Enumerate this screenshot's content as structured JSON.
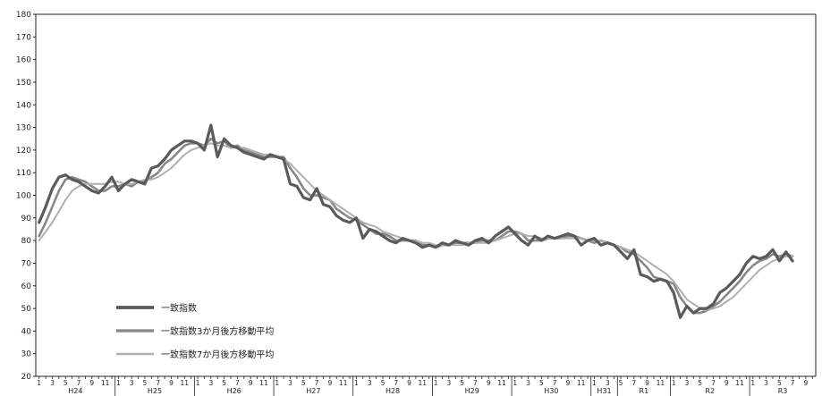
{
  "chart_data": {
    "type": "line",
    "ylim": [
      20,
      180
    ],
    "yticks": [
      20,
      30,
      40,
      50,
      60,
      70,
      80,
      90,
      100,
      110,
      120,
      130,
      140,
      150,
      160,
      170,
      180
    ],
    "grid": false,
    "legend_position": "bottom-left",
    "month_tick_labels": [
      "1",
      "3",
      "5",
      "7",
      "9",
      "11"
    ],
    "eras": [
      {
        "label": "H24",
        "months": 12
      },
      {
        "label": "H25",
        "months": 12
      },
      {
        "label": "H26",
        "months": 12
      },
      {
        "label": "H27",
        "months": 12
      },
      {
        "label": "H28",
        "months": 12
      },
      {
        "label": "H29",
        "months": 12
      },
      {
        "label": "H30",
        "months": 12
      },
      {
        "label": "H31",
        "months": 4
      },
      {
        "label": "R1",
        "months": 8
      },
      {
        "label": "R2",
        "months": 12
      },
      {
        "label": "R3",
        "months": 10
      }
    ],
    "series": [
      {
        "name": "一致指数",
        "color": "#5a5a5a",
        "values": [
          88,
          95,
          103,
          108,
          109,
          107,
          106,
          104,
          102,
          101,
          104,
          108,
          102,
          105,
          107,
          106,
          105,
          112,
          113,
          116,
          120,
          122,
          124,
          124,
          123,
          120,
          131,
          117,
          125,
          122,
          121,
          119,
          118,
          117,
          116,
          118,
          117,
          116,
          105,
          104,
          99,
          98,
          103,
          96,
          95,
          91,
          89,
          88,
          90,
          81,
          85,
          84,
          82,
          80,
          79,
          81,
          80,
          79,
          77,
          78,
          77,
          79,
          78,
          80,
          79,
          78,
          80,
          81,
          79,
          82,
          84,
          86,
          83,
          80,
          78,
          82,
          80,
          82,
          81,
          82,
          83,
          82,
          78,
          80,
          81,
          78,
          79,
          78,
          75,
          72,
          76,
          65,
          64,
          62,
          63,
          62,
          57,
          46,
          51,
          48,
          50,
          50,
          52,
          57,
          59,
          62,
          65,
          70,
          73,
          72,
          73,
          76,
          71,
          75,
          71
        ]
      },
      {
        "name": "一致指数3か月後方移動平均",
        "color": "#888888",
        "values": [
          82,
          88,
          95,
          102,
          107,
          108,
          107,
          106,
          104,
          102,
          102,
          104,
          104,
          105,
          104,
          106,
          106,
          108,
          110,
          114,
          116,
          119,
          122,
          123,
          123,
          122,
          125,
          123,
          124,
          121,
          122,
          120,
          119,
          118,
          117,
          117,
          117,
          117,
          112,
          108,
          103,
          100,
          100,
          99,
          98,
          94,
          92,
          90,
          89,
          87,
          85,
          83,
          83,
          82,
          80,
          80,
          80,
          80,
          78,
          78,
          77,
          78,
          78,
          79,
          79,
          79,
          79,
          80,
          80,
          80,
          82,
          84,
          84,
          83,
          80,
          80,
          80,
          81,
          81,
          81,
          82,
          82,
          81,
          80,
          79,
          80,
          79,
          78,
          77,
          75,
          74,
          71,
          68,
          64,
          63,
          62,
          61,
          55,
          51,
          48,
          48,
          49,
          51,
          53,
          56,
          59,
          62,
          66,
          69,
          71,
          72,
          74,
          73,
          74,
          73
        ]
      },
      {
        "name": "一致指数7か月後方移動平均",
        "color": "#b0b0b0",
        "values": [
          80,
          84,
          88,
          93,
          98,
          102,
          104,
          105,
          105,
          105,
          105,
          106,
          106,
          105,
          105,
          106,
          107,
          107,
          108,
          110,
          112,
          115,
          118,
          120,
          121,
          122,
          123,
          122,
          122,
          121,
          121,
          121,
          120,
          119,
          118,
          118,
          117,
          116,
          114,
          111,
          108,
          105,
          102,
          100,
          98,
          96,
          94,
          92,
          90,
          88,
          87,
          86,
          84,
          83,
          82,
          81,
          80,
          80,
          79,
          79,
          78,
          78,
          78,
          78,
          78,
          79,
          79,
          79,
          79,
          80,
          81,
          82,
          83,
          83,
          82,
          82,
          81,
          81,
          81,
          81,
          81,
          81,
          81,
          80,
          80,
          80,
          79,
          78,
          77,
          76,
          75,
          73,
          71,
          69,
          67,
          65,
          62,
          58,
          54,
          52,
          50,
          49,
          50,
          51,
          53,
          55,
          58,
          61,
          64,
          67,
          69,
          71,
          72,
          73,
          73
        ]
      }
    ]
  }
}
